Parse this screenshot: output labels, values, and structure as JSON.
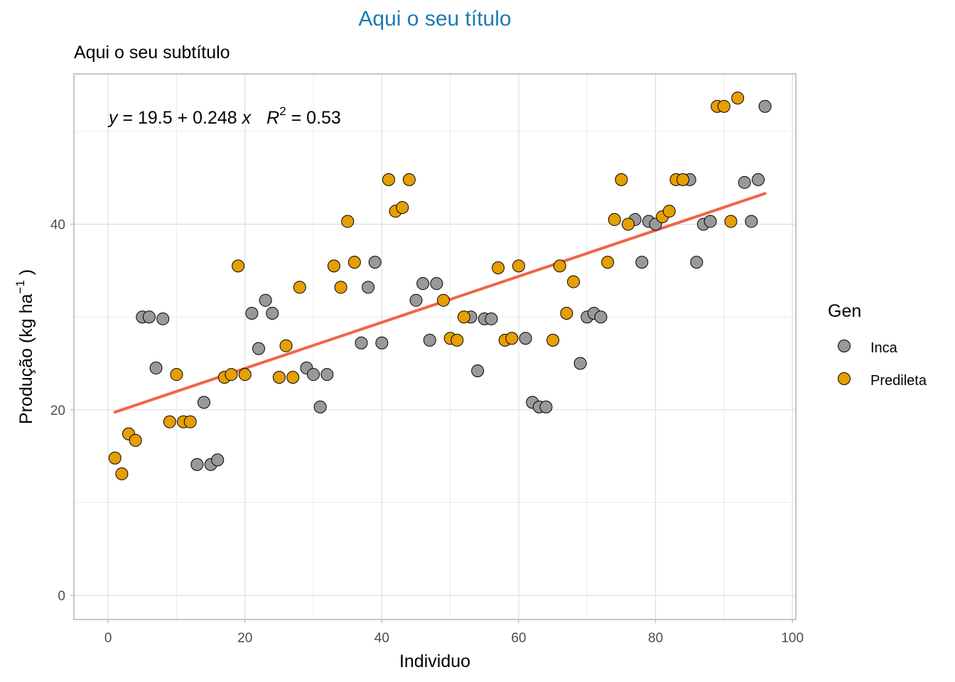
{
  "title": "Aqui o seu título",
  "subtitle": "Aqui o seu subtítulo",
  "chart_data": {
    "type": "scatter",
    "xlabel": "Individuo",
    "ylabel": "Produção (kg ha⁻¹ )",
    "ylabel_parts": {
      "main": "Produção (kg ha",
      "sup": "−1",
      "close": " )"
    },
    "xlim": [
      -5,
      100.5
    ],
    "ylim": [
      -2.6,
      56.2
    ],
    "x_ticks": [
      0,
      20,
      40,
      60,
      80,
      100
    ],
    "y_ticks": [
      0,
      20,
      40
    ],
    "grid": true,
    "legend_position": "right",
    "legend": {
      "title": "Gen",
      "entries": [
        "Inca",
        "Predileta"
      ]
    },
    "colors": {
      "Inca": "#999999",
      "Predileta": "#e69f00",
      "fit_line": "#f26448",
      "title": "#1b79b4"
    },
    "equation": {
      "y": "y",
      "rhs": " = 19.5 + 0.248 ",
      "x": "x",
      "r": "R",
      "r_sup": "2",
      "r_val": " = 0.53"
    },
    "fit": {
      "intercept": 19.5,
      "slope": 0.248,
      "r2": 0.53,
      "x_range": [
        1,
        96
      ]
    },
    "series": [
      {
        "name": "Inca",
        "points": [
          [
            5,
            30
          ],
          [
            6,
            30
          ],
          [
            7,
            24.5
          ],
          [
            8,
            29.8
          ],
          [
            13,
            14.1
          ],
          [
            14,
            20.8
          ],
          [
            15,
            14.1
          ],
          [
            16,
            14.6
          ],
          [
            21,
            30.4
          ],
          [
            22,
            26.6
          ],
          [
            23,
            31.8
          ],
          [
            24,
            30.4
          ],
          [
            29,
            24.5
          ],
          [
            30,
            23.8
          ],
          [
            31,
            20.3
          ],
          [
            32,
            23.8
          ],
          [
            37,
            27.2
          ],
          [
            38,
            33.2
          ],
          [
            39,
            35.9
          ],
          [
            40,
            27.2
          ],
          [
            45,
            31.8
          ],
          [
            46,
            33.6
          ],
          [
            47,
            27.5
          ],
          [
            48,
            33.6
          ],
          [
            53,
            30
          ],
          [
            54,
            24.2
          ],
          [
            55,
            29.8
          ],
          [
            56,
            29.8
          ],
          [
            61,
            27.7
          ],
          [
            62,
            20.8
          ],
          [
            63,
            20.3
          ],
          [
            64,
            20.3
          ],
          [
            69,
            25
          ],
          [
            70,
            30
          ],
          [
            71,
            30.4
          ],
          [
            72,
            30
          ],
          [
            77,
            40.5
          ],
          [
            78,
            35.9
          ],
          [
            79,
            40.3
          ],
          [
            80,
            40
          ],
          [
            85,
            44.8
          ],
          [
            86,
            35.9
          ],
          [
            87,
            40
          ],
          [
            88,
            40.3
          ],
          [
            93,
            44.5
          ],
          [
            94,
            40.3
          ],
          [
            95,
            44.8
          ],
          [
            96,
            52.7
          ]
        ]
      },
      {
        "name": "Predileta",
        "points": [
          [
            1,
            14.8
          ],
          [
            2,
            13.1
          ],
          [
            3,
            17.4
          ],
          [
            4,
            16.7
          ],
          [
            9,
            18.7
          ],
          [
            10,
            23.8
          ],
          [
            11,
            18.7
          ],
          [
            12,
            18.7
          ],
          [
            17,
            23.5
          ],
          [
            18,
            23.8
          ],
          [
            19,
            35.5
          ],
          [
            20,
            23.8
          ],
          [
            25,
            23.5
          ],
          [
            26,
            26.9
          ],
          [
            27,
            23.5
          ],
          [
            28,
            33.2
          ],
          [
            33,
            35.5
          ],
          [
            34,
            33.2
          ],
          [
            35,
            40.3
          ],
          [
            36,
            35.9
          ],
          [
            41,
            44.8
          ],
          [
            42,
            41.4
          ],
          [
            43,
            41.8
          ],
          [
            44,
            44.8
          ],
          [
            49,
            31.8
          ],
          [
            50,
            27.7
          ],
          [
            51,
            27.5
          ],
          [
            52,
            30
          ],
          [
            57,
            35.3
          ],
          [
            58,
            27.5
          ],
          [
            59,
            27.7
          ],
          [
            60,
            35.5
          ],
          [
            65,
            27.5
          ],
          [
            66,
            35.5
          ],
          [
            67,
            30.4
          ],
          [
            68,
            33.8
          ],
          [
            73,
            35.9
          ],
          [
            74,
            40.5
          ],
          [
            75,
            44.8
          ],
          [
            76,
            40
          ],
          [
            81,
            40.8
          ],
          [
            82,
            41.4
          ],
          [
            83,
            44.8
          ],
          [
            84,
            44.8
          ],
          [
            89,
            52.7
          ],
          [
            90,
            52.7
          ],
          [
            91,
            40.3
          ],
          [
            92,
            53.6
          ]
        ]
      }
    ]
  }
}
